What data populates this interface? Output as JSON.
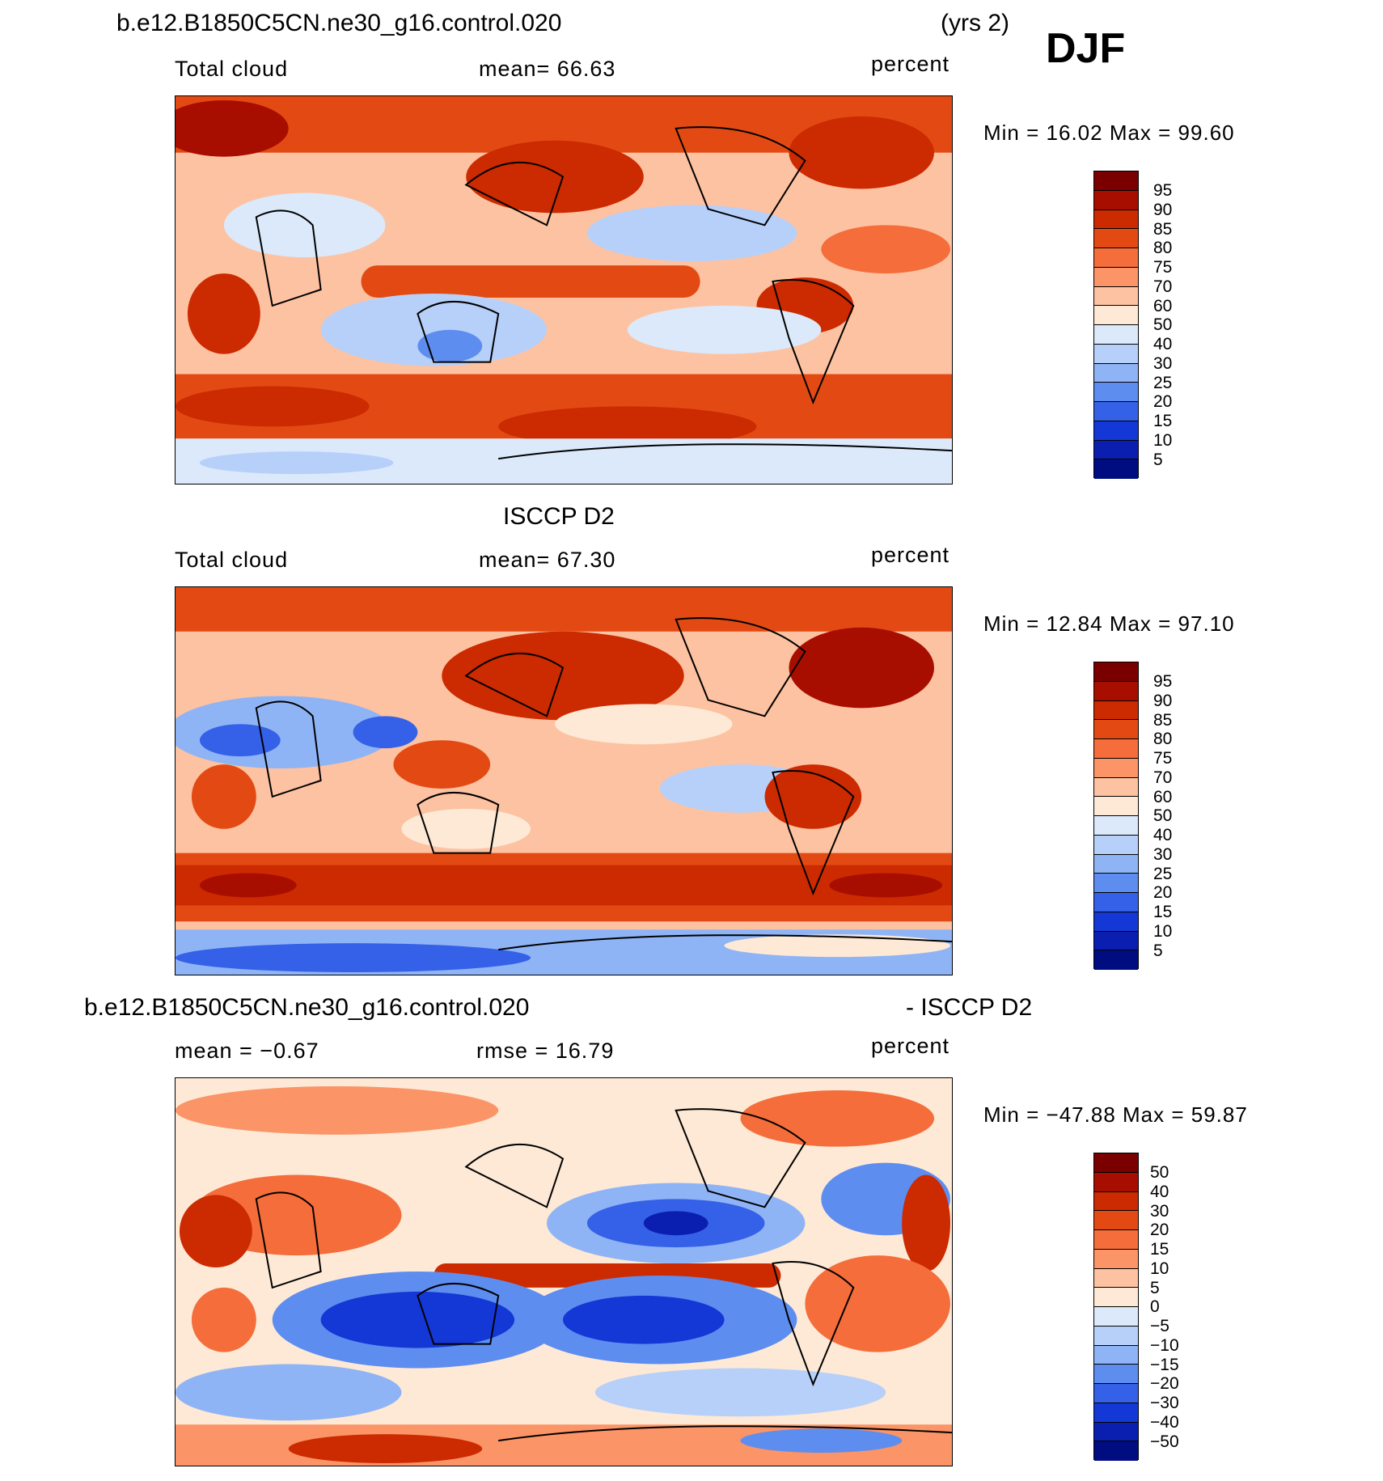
{
  "header": {
    "case_name": "b.e12.B1850C5CN.ne30_g16.control.020",
    "years": "(yrs 2)",
    "season": "DJF"
  },
  "panels": [
    {
      "title": "b.e12.B1850C5CN.ne30_g16.control.020",
      "left_label": "Total cloud",
      "center_label": "mean=   66.63",
      "units": "percent",
      "minmax": "Min =   16.02 Max =   99.60",
      "colorbar_labels": [
        "95",
        "90",
        "85",
        "80",
        "75",
        "70",
        "60",
        "50",
        "40",
        "30",
        "25",
        "20",
        "15",
        "10",
        "5"
      ]
    },
    {
      "title": "ISCCP D2",
      "left_label": "Total cloud",
      "center_label": "mean=   67.30",
      "units": "percent",
      "minmax": "Min =   12.84 Max =   97.10",
      "colorbar_labels": [
        "95",
        "90",
        "85",
        "80",
        "75",
        "70",
        "60",
        "50",
        "40",
        "30",
        "25",
        "20",
        "15",
        "10",
        "5"
      ]
    },
    {
      "title_left": "b.e12.B1850C5CN.ne30_g16.control.020",
      "title_right": "- ISCCP D2",
      "left_label": "mean =   −0.67",
      "center_label": "rmse =   16.79",
      "units": "percent",
      "minmax": "Min = −47.88 Max =   59.87",
      "colorbar_labels": [
        "50",
        "40",
        "30",
        "20",
        "15",
        "10",
        "5",
        "0",
        "−5",
        "−10",
        "−15",
        "−20",
        "−30",
        "−40",
        "−50"
      ]
    }
  ],
  "colors": {
    "scale": [
      "#7a0000",
      "#a80e00",
      "#cc2a00",
      "#e34a13",
      "#f46d3a",
      "#fb9466",
      "#fdc2a1",
      "#fde9d6",
      "#dbe9fb",
      "#b7d0f9",
      "#8fb4f5",
      "#5e8df0",
      "#3561e8",
      "#1438d6",
      "#0a1fb0",
      "#000d80"
    ]
  }
}
